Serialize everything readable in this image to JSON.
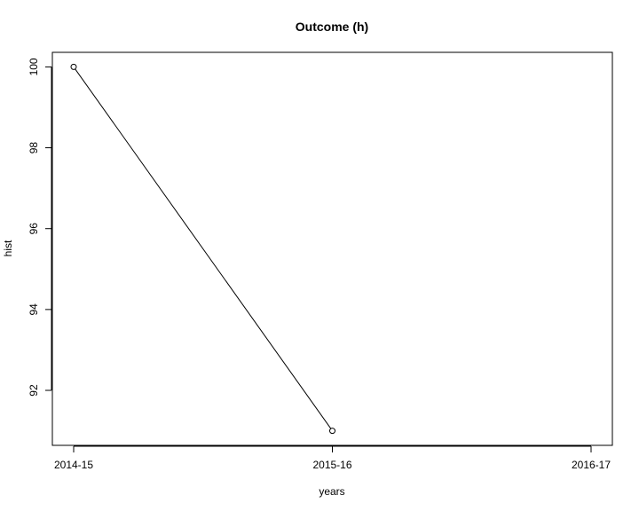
{
  "chart_data": {
    "type": "line",
    "title": "Outcome (h)",
    "xlabel": "years",
    "ylabel": "hist",
    "categories": [
      "2014-15",
      "2015-16",
      "2016-17"
    ],
    "series": [
      {
        "values": [
          100,
          91,
          null
        ]
      }
    ],
    "y_ticks": [
      92,
      94,
      96,
      98,
      100
    ],
    "y_tick_labels": [
      "92",
      "94",
      "96",
      "98",
      "100"
    ],
    "ylim": [
      90.64,
      100.36
    ],
    "markers": "open-circle",
    "line_color": "#000000",
    "grid": false,
    "legend": "none"
  }
}
